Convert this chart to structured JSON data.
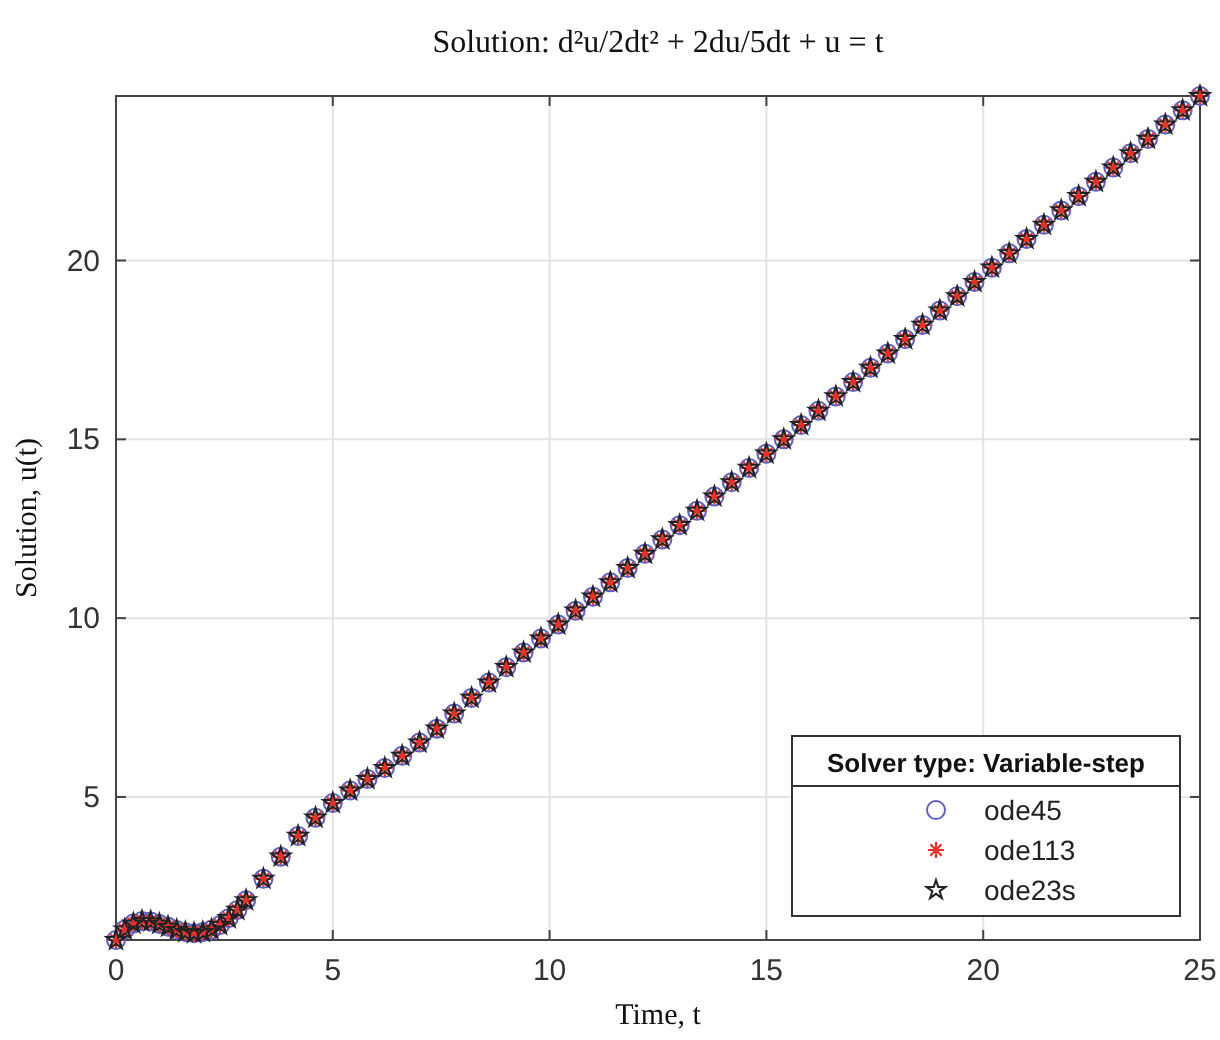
{
  "chart_data": {
    "type": "scatter",
    "title": "Solution: d²u/2dt² + 2du/5dt + u = t",
    "xlabel": "Time, t",
    "ylabel": "Solution, u(t)",
    "legend_title": "Solver type: Variable-step",
    "x": [
      0,
      0.2,
      0.4,
      0.6,
      0.8,
      1.0,
      1.2,
      1.4,
      1.6,
      1.8,
      2.0,
      2.2,
      2.4,
      2.6,
      2.8,
      3.0,
      3.4,
      3.8,
      4.2,
      4.6,
      5.0,
      5.4,
      5.8,
      6.2,
      6.6,
      7.0,
      7.4,
      7.8,
      8.2,
      8.6,
      9.0,
      9.4,
      9.8,
      10.2,
      10.6,
      11.0,
      11.4,
      11.8,
      12.2,
      12.6,
      13.0,
      13.4,
      13.8,
      14.2,
      14.6,
      15.0,
      15.4,
      15.8,
      16.2,
      16.6,
      17.0,
      17.4,
      17.8,
      18.2,
      18.6,
      19.0,
      19.4,
      19.8,
      20.2,
      20.6,
      21.0,
      21.4,
      21.8,
      22.2,
      22.6,
      23.0,
      23.4,
      23.8,
      24.2,
      24.6,
      25.0
    ],
    "series": [
      {
        "name": "ode45",
        "color": "#5f5fc0",
        "marker": "circle",
        "values": [
          1.0,
          1.29,
          1.46,
          1.53,
          1.52,
          1.45,
          1.37,
          1.28,
          1.22,
          1.19,
          1.22,
          1.29,
          1.42,
          1.61,
          1.84,
          2.11,
          2.71,
          3.33,
          3.91,
          4.42,
          4.83,
          5.18,
          5.5,
          5.81,
          6.15,
          6.52,
          6.91,
          7.33,
          7.77,
          8.2,
          8.63,
          9.04,
          9.43,
          9.82,
          10.21,
          10.6,
          11.0,
          11.4,
          11.8,
          12.2,
          12.6,
          13.0,
          13.4,
          13.8,
          14.2,
          14.6,
          15.0,
          15.4,
          15.8,
          16.2,
          16.6,
          17.0,
          17.4,
          17.8,
          18.2,
          18.6,
          19.0,
          19.4,
          19.8,
          20.2,
          20.6,
          21.0,
          21.4,
          21.8,
          22.2,
          22.6,
          23.0,
          23.4,
          23.8,
          24.2,
          24.6
        ]
      },
      {
        "name": "ode113",
        "color": "#e8302a",
        "marker": "cross",
        "values": [
          1.0,
          1.29,
          1.46,
          1.53,
          1.52,
          1.45,
          1.37,
          1.28,
          1.22,
          1.19,
          1.22,
          1.29,
          1.42,
          1.61,
          1.84,
          2.11,
          2.71,
          3.33,
          3.91,
          4.42,
          4.83,
          5.18,
          5.5,
          5.81,
          6.15,
          6.52,
          6.91,
          7.33,
          7.77,
          8.2,
          8.63,
          9.04,
          9.43,
          9.82,
          10.21,
          10.6,
          11.0,
          11.4,
          11.8,
          12.2,
          12.6,
          13.0,
          13.4,
          13.8,
          14.2,
          14.6,
          15.0,
          15.4,
          15.8,
          16.2,
          16.6,
          17.0,
          17.4,
          17.8,
          18.2,
          18.6,
          19.0,
          19.4,
          19.8,
          20.2,
          20.6,
          21.0,
          21.4,
          21.8,
          22.2,
          22.6,
          23.0,
          23.4,
          23.8,
          24.2,
          24.6
        ]
      },
      {
        "name": "ode23s",
        "color": "#222222",
        "marker": "star",
        "values": [
          1.0,
          1.29,
          1.46,
          1.53,
          1.52,
          1.45,
          1.37,
          1.28,
          1.22,
          1.19,
          1.22,
          1.29,
          1.42,
          1.61,
          1.84,
          2.11,
          2.71,
          3.33,
          3.91,
          4.42,
          4.83,
          5.18,
          5.5,
          5.81,
          6.15,
          6.52,
          6.91,
          7.33,
          7.77,
          8.2,
          8.63,
          9.04,
          9.43,
          9.82,
          10.21,
          10.6,
          11.0,
          11.4,
          11.8,
          12.2,
          12.6,
          13.0,
          13.4,
          13.8,
          14.2,
          14.6,
          15.0,
          15.4,
          15.8,
          16.2,
          16.6,
          17.0,
          17.4,
          17.8,
          18.2,
          18.6,
          19.0,
          19.4,
          19.8,
          20.2,
          20.6,
          21.0,
          21.4,
          21.8,
          22.2,
          22.6,
          23.0,
          23.4,
          23.8,
          24.2,
          24.6
        ]
      }
    ],
    "xlim": [
      0,
      25
    ],
    "xticks": [
      0,
      5,
      10,
      15,
      20,
      25
    ],
    "ylim": [
      1,
      24.6
    ],
    "yticks": [
      5,
      10,
      15,
      20
    ],
    "grid": true,
    "legend": "bottom right"
  }
}
